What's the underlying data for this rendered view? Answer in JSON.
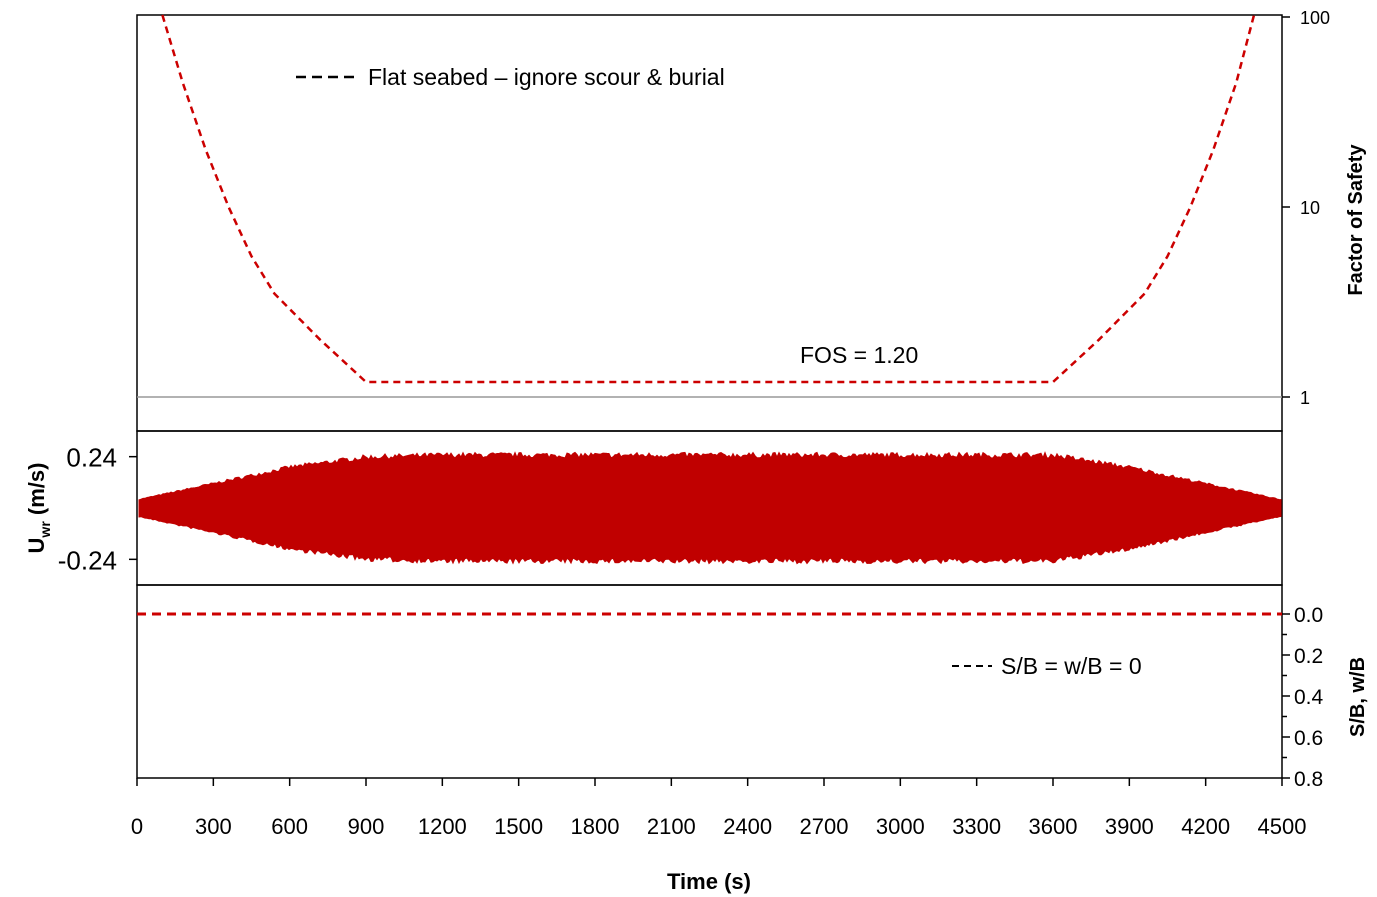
{
  "chart_data": [
    {
      "type": "line",
      "panel": "top",
      "ylabel": "Factor of Safety",
      "yscale": "log",
      "ylim": [
        1,
        100
      ],
      "ytick_labels": [
        "100",
        "10",
        "1"
      ],
      "ytick_values": [
        100,
        10,
        1
      ],
      "xlim": [
        0,
        4500
      ],
      "series": [
        {
          "name": "Flat seabed – ignore scour & burial",
          "color": "#cc0000",
          "style": "dashed",
          "x": [
            100,
            180,
            270,
            360,
            450,
            540,
            720,
            900,
            1800,
            2700,
            3600,
            3780,
            3960,
            4050,
            4140,
            4230,
            4320,
            4390
          ],
          "y": [
            120,
            45,
            20,
            10,
            5.5,
            3.5,
            2.0,
            1.2,
            1.2,
            1.2,
            1.2,
            2.0,
            3.5,
            5.5,
            10,
            20,
            45,
            120
          ]
        }
      ],
      "reference_line": {
        "y": 1,
        "color": "#999999"
      },
      "annotation": "FOS = 1.20",
      "legend": "top-left"
    },
    {
      "type": "line",
      "panel": "middle",
      "ylabel_main": "U",
      "ylabel_sub": "wr",
      "ylabel_unit": "(m/s)",
      "ytick_labels": [
        "0.24",
        "-0.24"
      ],
      "ytick_values": [
        0.24,
        -0.24
      ],
      "ylim": [
        -0.36,
        0.36
      ],
      "xlim": [
        0,
        4500
      ],
      "series": [
        {
          "color": "#c00000",
          "style": "filled-envelope",
          "x": [
            0,
            300,
            600,
            900,
            1200,
            1500,
            1800,
            2100,
            2400,
            2700,
            3000,
            3300,
            3600,
            3900,
            4200,
            4500
          ],
          "upper": [
            0.04,
            0.12,
            0.2,
            0.25,
            0.26,
            0.26,
            0.26,
            0.26,
            0.26,
            0.26,
            0.26,
            0.26,
            0.26,
            0.2,
            0.12,
            0.04
          ],
          "lower": [
            -0.04,
            -0.12,
            -0.2,
            -0.25,
            -0.26,
            -0.26,
            -0.26,
            -0.26,
            -0.26,
            -0.26,
            -0.26,
            -0.26,
            -0.26,
            -0.2,
            -0.12,
            -0.04
          ]
        }
      ]
    },
    {
      "type": "line",
      "panel": "bottom",
      "ylabel": "S/B, w/B",
      "ylim": [
        0,
        0.8
      ],
      "yinverted": true,
      "ytick_labels": [
        "0.0",
        "0.2",
        "0.4",
        "0.6",
        "0.8"
      ],
      "ytick_values": [
        0,
        0.2,
        0.4,
        0.6,
        0.8
      ],
      "xlim": [
        0,
        4500
      ],
      "xlabel": "Time (s)",
      "xtick_labels": [
        "0",
        "300",
        "600",
        "900",
        "1200",
        "1500",
        "1800",
        "2100",
        "2400",
        "2700",
        "3000",
        "3300",
        "3600",
        "3900",
        "4200",
        "4500"
      ],
      "xtick_values": [
        0,
        300,
        600,
        900,
        1200,
        1500,
        1800,
        2100,
        2400,
        2700,
        3000,
        3300,
        3600,
        3900,
        4200,
        4500
      ],
      "series": [
        {
          "name": "S/B = w/B = 0",
          "color": "#cc0000",
          "style": "dashed",
          "x": [
            0,
            4500
          ],
          "y": [
            0,
            0
          ]
        }
      ],
      "legend": "right"
    }
  ]
}
